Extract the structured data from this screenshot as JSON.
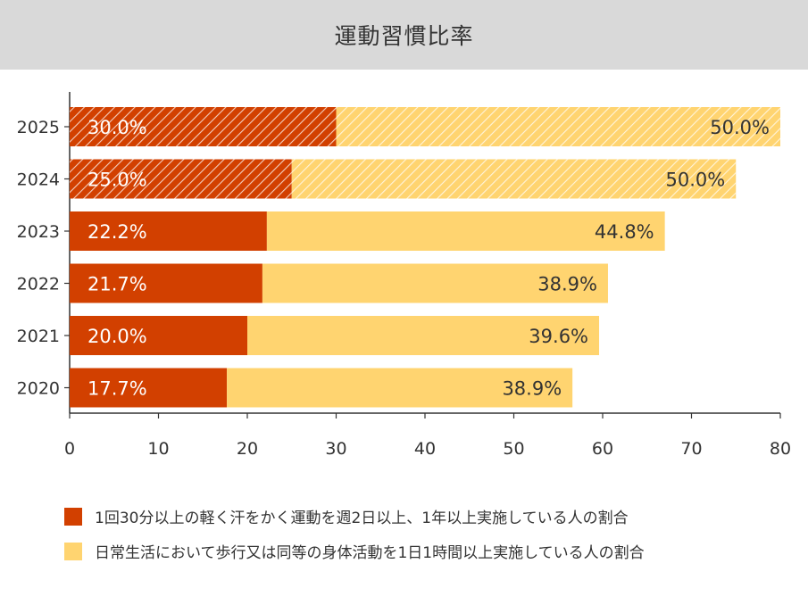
{
  "chart_data": {
    "type": "bar",
    "orientation": "horizontal",
    "stacked": true,
    "title": "運動習慣比率",
    "categories": [
      "2025",
      "2024",
      "2023",
      "2022",
      "2021",
      "2020"
    ],
    "series": [
      {
        "name": "1回30分以上の軽く汗をかく運動を週2日以上、1年以上実施している人の割合",
        "values": [
          30.0,
          25.0,
          22.2,
          21.7,
          20.0,
          17.7
        ],
        "labels": [
          "30.0%",
          "25.0%",
          "22.2%",
          "21.7%",
          "20.0%",
          "17.7%"
        ],
        "color": "#d24000",
        "hatched": [
          true,
          true,
          false,
          false,
          false,
          false
        ]
      },
      {
        "name": "日常生活において歩行又は同等の身体活動を1日1時間以上実施している人の割合",
        "values": [
          50.0,
          50.0,
          44.8,
          38.9,
          39.6,
          38.9
        ],
        "labels": [
          "50.0%",
          "50.0%",
          "44.8%",
          "38.9%",
          "39.6%",
          "38.9%"
        ],
        "color": "#ffd470",
        "hatched": [
          true,
          true,
          false,
          false,
          false,
          false
        ]
      }
    ],
    "xlim": [
      0,
      80
    ],
    "xticks": [
      "0",
      "10",
      "20",
      "30",
      "40",
      "50",
      "60",
      "70",
      "80"
    ],
    "xlabel": "",
    "ylabel": "",
    "legend_position": "bottom"
  }
}
